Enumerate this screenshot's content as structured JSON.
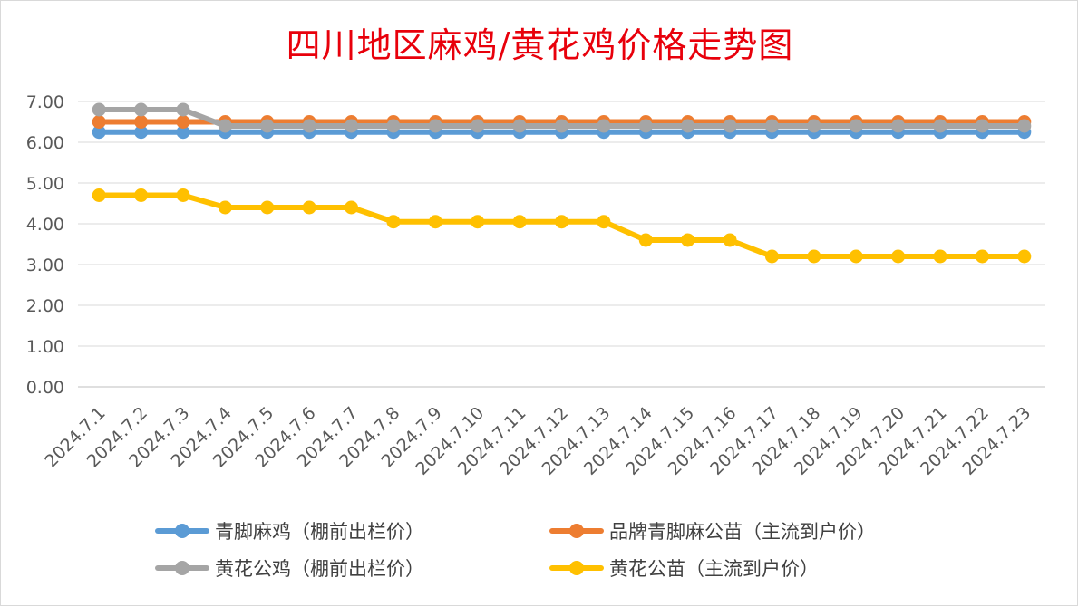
{
  "chart_data": {
    "type": "line",
    "title": "四川地区麻鸡/黄花鸡价格走势图",
    "xlabel": "",
    "ylabel": "",
    "ylim": [
      0,
      7
    ],
    "yticks": [
      "0.00",
      "1.00",
      "2.00",
      "3.00",
      "4.00",
      "5.00",
      "6.00",
      "7.00"
    ],
    "grid": true,
    "legend_position": "bottom",
    "categories": [
      "2024.7.1",
      "2024.7.2",
      "2024.7.3",
      "2024.7.4",
      "2024.7.5",
      "2024.7.6",
      "2024.7.7",
      "2024.7.8",
      "2024.7.9",
      "2024.7.10",
      "2024.7.11",
      "2024.7.12",
      "2024.7.13",
      "2024.7.14",
      "2024.7.15",
      "2024.7.16",
      "2024.7.17",
      "2024.7.18",
      "2024.7.19",
      "2024.7.20",
      "2024.7.21",
      "2024.7.22",
      "2024.7.23"
    ],
    "series": [
      {
        "name": "青脚麻鸡（棚前出栏价）",
        "color": "#5b9bd5",
        "values": [
          6.25,
          6.25,
          6.25,
          6.25,
          6.25,
          6.25,
          6.25,
          6.25,
          6.25,
          6.25,
          6.25,
          6.25,
          6.25,
          6.25,
          6.25,
          6.25,
          6.25,
          6.25,
          6.25,
          6.25,
          6.25,
          6.25,
          6.25
        ]
      },
      {
        "name": "品牌青脚麻公苗（主流到户价）",
        "color": "#ed7d31",
        "values": [
          6.5,
          6.5,
          6.5,
          6.5,
          6.5,
          6.5,
          6.5,
          6.5,
          6.5,
          6.5,
          6.5,
          6.5,
          6.5,
          6.5,
          6.5,
          6.5,
          6.5,
          6.5,
          6.5,
          6.5,
          6.5,
          6.5,
          6.5
        ]
      },
      {
        "name": "黄花公鸡（棚前出栏价）",
        "color": "#a5a5a5",
        "values": [
          6.8,
          6.8,
          6.8,
          6.4,
          6.4,
          6.4,
          6.4,
          6.4,
          6.4,
          6.4,
          6.4,
          6.4,
          6.4,
          6.4,
          6.4,
          6.4,
          6.4,
          6.4,
          6.4,
          6.4,
          6.4,
          6.4,
          6.4
        ]
      },
      {
        "name": "黄花公苗（主流到户价）",
        "color": "#ffc000",
        "values": [
          4.7,
          4.7,
          4.7,
          4.4,
          4.4,
          4.4,
          4.4,
          4.05,
          4.05,
          4.05,
          4.05,
          4.05,
          4.05,
          3.6,
          3.6,
          3.6,
          3.2,
          3.2,
          3.2,
          3.2,
          3.2,
          3.2,
          3.2
        ]
      }
    ]
  }
}
